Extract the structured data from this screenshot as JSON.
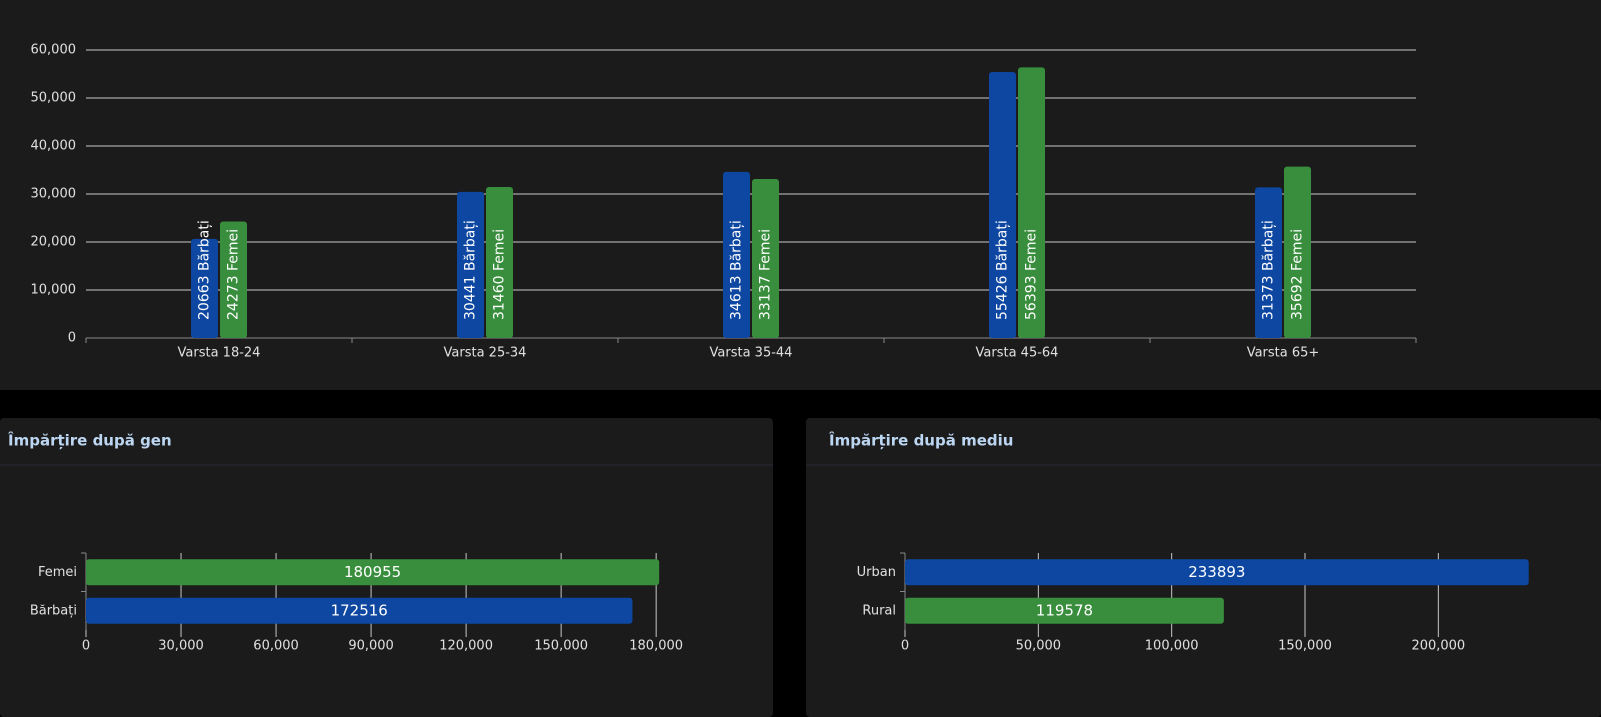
{
  "chart_data": [
    {
      "type": "bar",
      "categories": [
        "Varsta 18-24",
        "Varsta 25-34",
        "Varsta 35-44",
        "Varsta 45-64",
        "Varsta 65+"
      ],
      "series": [
        {
          "color": "#0d47a1",
          "values": [
            20663,
            30441,
            34613,
            55426,
            31373
          ],
          "value_labels": [
            "20663 Bărbați",
            "30441 Bărbați",
            "34613 Bărbați",
            "55426 Bărbați",
            "31373 Bărbați"
          ]
        },
        {
          "color": "#388e3c",
          "values": [
            24273,
            31460,
            33137,
            56393,
            35692
          ],
          "value_labels": [
            "24273 Femei",
            "31460 Femei",
            "33137 Femei",
            "56393 Femei",
            "35692 Femei"
          ]
        }
      ],
      "ylim": [
        0,
        60000
      ],
      "yticks": [
        0,
        {
          "value": 10000,
          "label": "10,000"
        },
        {
          "value": 20000,
          "label": "20,000"
        },
        {
          "value": 30000,
          "label": "30,000"
        },
        {
          "value": 40000,
          "label": "40,000"
        },
        {
          "value": 50000,
          "label": "50,000"
        },
        {
          "value": 60000,
          "label": "60,000"
        }
      ],
      "grid": true
    },
    {
      "type": "hbar",
      "title": "Împărțire după gen",
      "categories": [
        "Femei",
        "Bărbați"
      ],
      "values": [
        180955,
        172516
      ],
      "colors": [
        "#388e3c",
        "#0d47a1"
      ],
      "xlim": [
        0,
        185000
      ],
      "xticks": [
        0,
        {
          "value": 30000,
          "label": "30,000"
        },
        {
          "value": 60000,
          "label": "60,000"
        },
        {
          "value": 90000,
          "label": "90,000"
        },
        {
          "value": 120000,
          "label": "120,000"
        },
        {
          "value": 150000,
          "label": "150,000"
        },
        {
          "value": 180000,
          "label": "180,000"
        }
      ],
      "grid": true
    },
    {
      "type": "hbar",
      "title": "Împărțire după mediu",
      "categories": [
        "Urban",
        "Rural"
      ],
      "values": [
        233893,
        119578
      ],
      "colors": [
        "#0d47a1",
        "#388e3c"
      ],
      "xlim": [
        0,
        240000
      ],
      "xticks": [
        0,
        {
          "value": 50000,
          "label": "50,000"
        },
        {
          "value": 100000,
          "label": "100,000"
        },
        {
          "value": 150000,
          "label": "150,000"
        },
        {
          "value": 200000,
          "label": "200,000"
        }
      ],
      "grid": true
    }
  ]
}
